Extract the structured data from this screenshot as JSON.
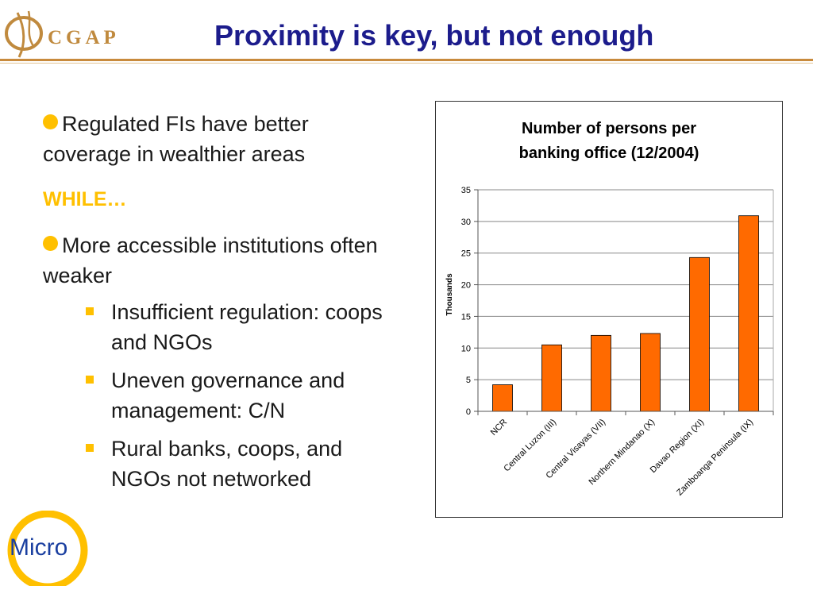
{
  "header": {
    "logo_text": "CGAP",
    "title": "Proximity is key, but not enough"
  },
  "bullets": {
    "b1": "Regulated FIs have better coverage in wealthier areas",
    "while_label": "WHILE…",
    "b2": "More accessible institutions often weaker",
    "sub": [
      "Insufficient regulation: coops and NGOs",
      "Uneven governance and management: C/N",
      "Rural banks, coops, and NGOs not networked"
    ]
  },
  "footer": {
    "micro_label": "Micro"
  },
  "colors": {
    "bar": "#ff6a00",
    "title": "#1c1c8c",
    "accent": "#ffc000",
    "rule": "#c88a3c"
  },
  "chart_data": {
    "type": "bar",
    "title_lines": [
      "Number of persons per",
      "banking office (12/2004)"
    ],
    "xlabel": "",
    "ylabel": "Thousands",
    "ylim": [
      0,
      35
    ],
    "yticks": [
      0,
      5,
      10,
      15,
      20,
      25,
      30,
      35
    ],
    "grid": true,
    "legend": "none",
    "categories": [
      "NCR",
      "Central Luzon (III)",
      "Central Visayas (VII)",
      "Northern Mindanao (X)",
      "Davao Region (XI)",
      "Zamboanga Peninsula (IX)"
    ],
    "values": [
      4.2,
      10.5,
      12.0,
      12.3,
      24.3,
      30.9
    ]
  }
}
